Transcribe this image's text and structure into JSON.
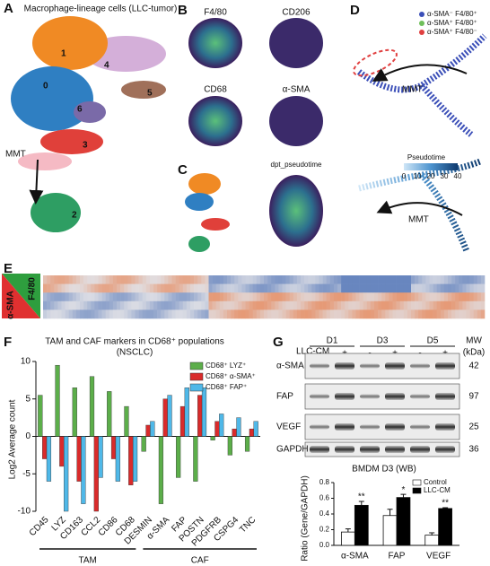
{
  "figure": {
    "panel_labels": [
      "A",
      "B",
      "C",
      "D",
      "E",
      "F",
      "G"
    ],
    "a": {
      "title": "Macrophage-lineage cells (LLC-tumor)",
      "clusters": [
        "0",
        "1",
        "2",
        "3",
        "4",
        "5",
        "6"
      ],
      "arrow_label": "MMT"
    },
    "b": {
      "genes": [
        "F4/80",
        "CD206",
        "CD68",
        "α-SMA"
      ]
    },
    "c": {
      "title": "dpt_pseudotime"
    },
    "d": {
      "legend": [
        "α-SMA⁻ F4/80⁺",
        "α-SMA⁺ F4/80⁺",
        "α-SMA⁺ F4/80⁻"
      ],
      "legend_colors": [
        "#3b4fb8",
        "#6fbf5a",
        "#e04040"
      ],
      "arrow_label": "MMT",
      "arrow_label_2": "MMT",
      "colorbar_title": "Pseudotime",
      "colorbar_ticks": [
        0,
        10,
        20,
        30,
        40
      ]
    },
    "e": {
      "row_labels": [
        "F4/80",
        "α-SMA"
      ]
    },
    "g_blot": {
      "treatment": "LLC-CM",
      "days": [
        "D1",
        "D3",
        "D5"
      ],
      "lanes": [
        "-",
        "+",
        "-",
        "+",
        "-",
        "+"
      ],
      "proteins": [
        "α-SMA",
        "FAP",
        "VEGF",
        "GAPDH"
      ],
      "mw_title": "MW",
      "mw_unit": "(kDa)",
      "mw": [
        42,
        97,
        25,
        36
      ]
    }
  },
  "chart_data": [
    {
      "type": "bar",
      "title": "TAM and CAF markers in CD68⁺ populations",
      "subtitle": "(NSCLC)",
      "y_label": "Log2 Average count",
      "categories": [
        "CD45",
        "LYZ",
        "CD163",
        "CCL2",
        "CD86",
        "CD68",
        "DESMIN",
        "α-SMA",
        "FAP",
        "POSTN",
        "PDGFRB",
        "CSPG4",
        "TNC"
      ],
      "group_labels": [
        "TAM",
        "CAF"
      ],
      "series": [
        {
          "name": "CD68⁺ LYZ⁺",
          "color": "#5cae4a",
          "values": [
            5.5,
            9.5,
            6.5,
            8,
            6,
            4,
            -2,
            -9,
            -5.5,
            -6,
            -0.5,
            -2.5,
            -2
          ]
        },
        {
          "name": "CD68⁺ α-SMA⁺",
          "color": "#d92b2b",
          "values": [
            -3,
            -4,
            -6,
            -10,
            -3,
            -6.5,
            1.5,
            5,
            4,
            5.5,
            2,
            1,
            1
          ]
        },
        {
          "name": "CD68⁺ FAP⁺",
          "color": "#4fb8e8",
          "values": [
            -6,
            -10,
            -9,
            -5.5,
            -6,
            -6,
            2,
            5.5,
            6.5,
            6.5,
            3,
            2.5,
            2
          ]
        }
      ],
      "ylim": [
        -10,
        10
      ],
      "yticks": [
        -10,
        -5,
        0,
        5,
        10
      ],
      "legend": "top-right"
    },
    {
      "type": "bar",
      "title": "BMDM D3 (WB)",
      "y_label": "Ratio (Gene/GAPDH)",
      "categories": [
        "α-SMA",
        "FAP",
        "VEGF"
      ],
      "series": [
        {
          "name": "Control",
          "color": "#ffffff",
          "values": [
            0.17,
            0.38,
            0.13
          ],
          "errors": [
            0.04,
            0.08,
            0.03
          ]
        },
        {
          "name": "LLC-CM",
          "color": "#000000",
          "values": [
            0.51,
            0.61,
            0.47
          ],
          "errors": [
            0.05,
            0.04,
            0.01
          ],
          "annotations": [
            "**",
            "*",
            "**"
          ]
        }
      ],
      "ylim": [
        0,
        0.8
      ],
      "yticks": [
        {
          "value": 0,
          "label": "0.0"
        },
        0.2,
        0.4,
        0.6,
        0.8
      ],
      "legend": "top-right"
    }
  ]
}
